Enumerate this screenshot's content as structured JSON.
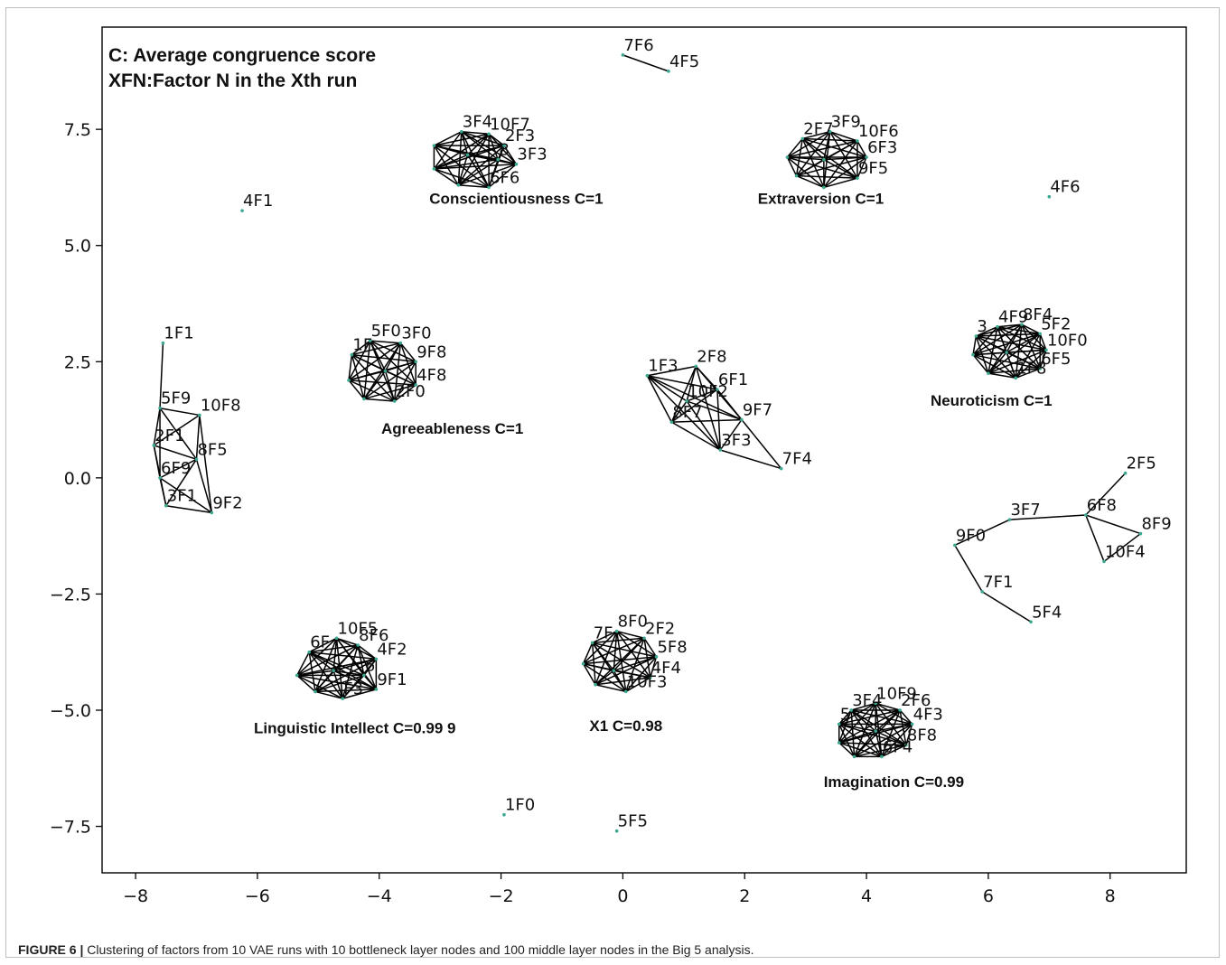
{
  "caption": {
    "figure_label": "FIGURE 6 |",
    "text": " Clustering of factors from 10 VAE runs with 10 bottleneck layer nodes and 100 middle layer nodes in the Big 5 analysis."
  },
  "chart_data": {
    "type": "scatter",
    "xlim": [
      -8.55,
      9.25
    ],
    "ylim": [
      -8.5,
      9.7
    ],
    "xticks": [
      -8,
      -6,
      -4,
      -2,
      0,
      2,
      4,
      6,
      8
    ],
    "yticks": [
      7.5,
      5.0,
      2.5,
      0.0,
      -2.5,
      -5.0,
      -7.5
    ],
    "xtick_labels": [
      "−8",
      "−6",
      "−4",
      "−2",
      "0",
      "2",
      "4",
      "6",
      "8"
    ],
    "ytick_labels": [
      "7.5",
      "5.0",
      "2.5",
      "0.0",
      "−2.5",
      "−5.0",
      "−7.5"
    ],
    "grid": false,
    "annotations": [
      "C: Average congruence score",
      "XFN:Factor N in the Xth run"
    ],
    "edge_color": "#000000",
    "node_color": "#3aa88f",
    "clusters": [
      {
        "label": "Conscientiousness C=1",
        "label_pos": [
          -1.75,
          5.9
        ],
        "complete": true,
        "nodes": [
          {
            "id": "3F4",
            "x": -2.65,
            "y": 7.45
          },
          {
            "id": "10F7",
            "x": -2.2,
            "y": 7.4
          },
          {
            "id": "2F3",
            "x": -1.95,
            "y": 7.15
          },
          {
            "id": "",
            "x": -3.1,
            "y": 7.15
          },
          {
            "id": "8",
            "x": -2.05,
            "y": 6.85
          },
          {
            "id": "3F3",
            "x": -1.75,
            "y": 6.75
          },
          {
            "id": "",
            "x": -3.1,
            "y": 6.65
          },
          {
            "id": "6F6",
            "x": -2.2,
            "y": 6.25
          },
          {
            "id": "",
            "x": -2.7,
            "y": 6.3
          },
          {
            "id": "",
            "x": -2.55,
            "y": 6.95
          }
        ],
        "label_offsets": [
          [
            -0.05,
            0.1
          ],
          [
            0.05,
            0.1
          ],
          [
            0.05,
            0.05
          ],
          [
            0,
            0
          ],
          [
            0.05,
            0
          ],
          [
            0.05,
            -0.05
          ],
          [
            0,
            0
          ],
          [
            0.05,
            0
          ],
          [
            0,
            0
          ],
          [
            0,
            0
          ]
        ]
      },
      {
        "label": "Extraversion C=1",
        "label_pos": [
          3.25,
          5.9
        ],
        "complete": true,
        "nodes": [
          {
            "id": "2F7",
            "x": 2.95,
            "y": 7.3
          },
          {
            "id": "3F9",
            "x": 3.4,
            "y": 7.45
          },
          {
            "id": "10F6",
            "x": 3.85,
            "y": 7.25
          },
          {
            "id": "6F3",
            "x": 4.0,
            "y": 6.9
          },
          {
            "id": "9F5",
            "x": 3.85,
            "y": 6.45
          },
          {
            "id": "",
            "x": 3.3,
            "y": 6.25
          },
          {
            "id": "",
            "x": 2.85,
            "y": 6.5
          },
          {
            "id": "",
            "x": 2.7,
            "y": 6.9
          },
          {
            "id": "",
            "x": 3.3,
            "y": 6.85
          }
        ]
      },
      {
        "label": "Agreeableness C=1",
        "label_pos": [
          -2.8,
          0.95
        ],
        "complete": true,
        "nodes": [
          {
            "id": "5F0",
            "x": -4.15,
            "y": 2.95
          },
          {
            "id": "3F0",
            "x": -3.65,
            "y": 2.9
          },
          {
            "id": "1F",
            "x": -4.45,
            "y": 2.65
          },
          {
            "id": "9F8",
            "x": -3.4,
            "y": 2.5
          },
          {
            "id": "4F8",
            "x": -3.4,
            "y": 2.0
          },
          {
            "id": "2F0",
            "x": -3.75,
            "y": 1.65
          },
          {
            "id": "",
            "x": -4.25,
            "y": 1.7
          },
          {
            "id": "",
            "x": -4.5,
            "y": 2.1
          },
          {
            "id": "",
            "x": -3.9,
            "y": 2.3
          }
        ]
      },
      {
        "label": "Neuroticism C=1",
        "label_pos": [
          6.05,
          1.55
        ],
        "complete": true,
        "nodes": [
          {
            "id": "4F9",
            "x": 6.15,
            "y": 3.25
          },
          {
            "id": "8F4",
            "x": 6.55,
            "y": 3.3
          },
          {
            "id": "5F2",
            "x": 6.85,
            "y": 3.1
          },
          {
            "id": "10F0",
            "x": 6.95,
            "y": 2.75
          },
          {
            "id": "6F5",
            "x": 6.85,
            "y": 2.35
          },
          {
            "id": "1F8",
            "x": 6.45,
            "y": 2.15
          },
          {
            "id": "",
            "x": 6.0,
            "y": 2.25
          },
          {
            "id": "",
            "x": 5.75,
            "y": 2.65
          },
          {
            "id": "3",
            "x": 5.8,
            "y": 3.05
          },
          {
            "id": "",
            "x": 6.3,
            "y": 2.7
          }
        ]
      },
      {
        "label": "Linguistic Intellect C=0.99  9",
        "label_pos": [
          -4.4,
          -5.5
        ],
        "complete": true,
        "nodes": [
          {
            "id": "10F5",
            "x": -4.7,
            "y": -3.45
          },
          {
            "id": "8F6",
            "x": -4.35,
            "y": -3.6
          },
          {
            "id": "6F",
            "x": -5.15,
            "y": -3.75
          },
          {
            "id": "4F2",
            "x": -4.05,
            "y": -3.9
          },
          {
            "id": "6",
            "x": -4.25,
            "y": -4.25
          },
          {
            "id": "9F1",
            "x": -4.05,
            "y": -4.55
          },
          {
            "id": "F3",
            "x": -4.6,
            "y": -4.75
          },
          {
            "id": "",
            "x": -5.05,
            "y": -4.6
          },
          {
            "id": "",
            "x": -5.35,
            "y": -4.25
          },
          {
            "id": "",
            "x": -4.75,
            "y": -4.15
          }
        ]
      },
      {
        "label": "X1 C=0.98",
        "label_pos": [
          0.05,
          -5.45
        ],
        "complete": true,
        "nodes": [
          {
            "id": "8F0",
            "x": -0.1,
            "y": -3.3
          },
          {
            "id": "2F2",
            "x": 0.35,
            "y": -3.45
          },
          {
            "id": "7F",
            "x": -0.5,
            "y": -3.55
          },
          {
            "id": "5F8",
            "x": 0.55,
            "y": -3.85
          },
          {
            "id": "4F4",
            "x": 0.45,
            "y": -4.3
          },
          {
            "id": "10F3",
            "x": 0.05,
            "y": -4.6
          },
          {
            "id": "",
            "x": -0.45,
            "y": -4.45
          },
          {
            "id": "",
            "x": -0.65,
            "y": -4.0
          },
          {
            "id": "",
            "x": -0.15,
            "y": -4.15
          }
        ]
      },
      {
        "label": "Imagination C=0.99",
        "label_pos": [
          4.45,
          -6.65
        ],
        "complete": true,
        "nodes": [
          {
            "id": "10F9",
            "x": 4.15,
            "y": -4.85
          },
          {
            "id": "2F6",
            "x": 4.55,
            "y": -5.0
          },
          {
            "id": "3F4",
            "x": 3.75,
            "y": -5.0
          },
          {
            "id": "4F3",
            "x": 4.75,
            "y": -5.3
          },
          {
            "id": "8F8",
            "x": 4.65,
            "y": -5.75
          },
          {
            "id": "6F4",
            "x": 4.25,
            "y": -6.0
          },
          {
            "id": "",
            "x": 3.8,
            "y": -6.0
          },
          {
            "id": "",
            "x": 3.55,
            "y": -5.7
          },
          {
            "id": "5",
            "x": 3.55,
            "y": -5.3
          },
          {
            "id": "",
            "x": 4.15,
            "y": -5.45
          }
        ]
      },
      {
        "label": "",
        "complete": false,
        "nodes": [
          {
            "id": "1F1",
            "x": -7.55,
            "y": 2.9
          },
          {
            "id": "5F9",
            "x": -7.6,
            "y": 1.5
          },
          {
            "id": "10F8",
            "x": -6.95,
            "y": 1.35
          },
          {
            "id": "2F1",
            "x": -7.7,
            "y": 0.7
          },
          {
            "id": "8F5",
            "x": -7.0,
            "y": 0.4
          },
          {
            "id": "6F9",
            "x": -7.6,
            "y": 0.0
          },
          {
            "id": "3F1",
            "x": -7.5,
            "y": -0.6
          },
          {
            "id": "9F2",
            "x": -6.75,
            "y": -0.75
          }
        ],
        "edges": [
          [
            0,
            1
          ],
          [
            1,
            2
          ],
          [
            1,
            3
          ],
          [
            1,
            4
          ],
          [
            1,
            5
          ],
          [
            2,
            4
          ],
          [
            2,
            3
          ],
          [
            3,
            4
          ],
          [
            3,
            5
          ],
          [
            3,
            6
          ],
          [
            4,
            5
          ],
          [
            4,
            6
          ],
          [
            4,
            7
          ],
          [
            5,
            6
          ],
          [
            6,
            7
          ],
          [
            5,
            7
          ],
          [
            2,
            7
          ]
        ]
      },
      {
        "label": "",
        "complete": false,
        "nodes": [
          {
            "id": "1F3",
            "x": 0.4,
            "y": 2.2
          },
          {
            "id": "2F8",
            "x": 1.2,
            "y": 2.4
          },
          {
            "id": "6F1",
            "x": 1.55,
            "y": 1.9
          },
          {
            "id": "10F2",
            "x": 1.05,
            "y": 1.65
          },
          {
            "id": "9F7",
            "x": 1.95,
            "y": 1.25
          },
          {
            "id": "8F7",
            "x": 0.8,
            "y": 1.2
          },
          {
            "id": "3F3",
            "x": 1.6,
            "y": 0.6
          },
          {
            "id": "7F4",
            "x": 2.6,
            "y": 0.2
          }
        ],
        "edges": [
          [
            0,
            1
          ],
          [
            0,
            2
          ],
          [
            0,
            3
          ],
          [
            0,
            4
          ],
          [
            0,
            5
          ],
          [
            0,
            6
          ],
          [
            1,
            2
          ],
          [
            1,
            3
          ],
          [
            1,
            4
          ],
          [
            1,
            5
          ],
          [
            1,
            6
          ],
          [
            2,
            3
          ],
          [
            2,
            4
          ],
          [
            2,
            5
          ],
          [
            2,
            6
          ],
          [
            3,
            4
          ],
          [
            3,
            5
          ],
          [
            3,
            6
          ],
          [
            4,
            5
          ],
          [
            4,
            6
          ],
          [
            5,
            6
          ],
          [
            2,
            7
          ],
          [
            6,
            7
          ]
        ]
      },
      {
        "label": "",
        "complete": false,
        "nodes": [
          {
            "id": "2F5",
            "x": 8.25,
            "y": 0.1
          },
          {
            "id": "3F7",
            "x": 6.35,
            "y": -0.9
          },
          {
            "id": "6F8",
            "x": 7.6,
            "y": -0.8
          },
          {
            "id": "8F9",
            "x": 8.5,
            "y": -1.2
          },
          {
            "id": "9F0",
            "x": 5.45,
            "y": -1.45
          },
          {
            "id": "10F4",
            "x": 7.9,
            "y": -1.8
          },
          {
            "id": "7F1",
            "x": 5.9,
            "y": -2.45
          },
          {
            "id": "5F4",
            "x": 6.7,
            "y": -3.1
          }
        ],
        "edges": [
          [
            0,
            2
          ],
          [
            1,
            2
          ],
          [
            2,
            3
          ],
          [
            2,
            5
          ],
          [
            3,
            5
          ],
          [
            1,
            4
          ],
          [
            4,
            6
          ],
          [
            6,
            7
          ]
        ]
      },
      {
        "label": "",
        "complete": false,
        "nodes": [
          {
            "id": "7F6",
            "x": 0.0,
            "y": 9.1
          },
          {
            "id": "4F5",
            "x": 0.75,
            "y": 8.75
          }
        ],
        "edges": [
          [
            0,
            1
          ]
        ]
      }
    ],
    "singletons": [
      {
        "id": "4F1",
        "x": -6.25,
        "y": 5.75
      },
      {
        "id": "4F6",
        "x": 7.0,
        "y": 6.05
      },
      {
        "id": "1F0",
        "x": -1.95,
        "y": -7.25
      },
      {
        "id": "5F5",
        "x": -0.1,
        "y": -7.6
      }
    ]
  }
}
